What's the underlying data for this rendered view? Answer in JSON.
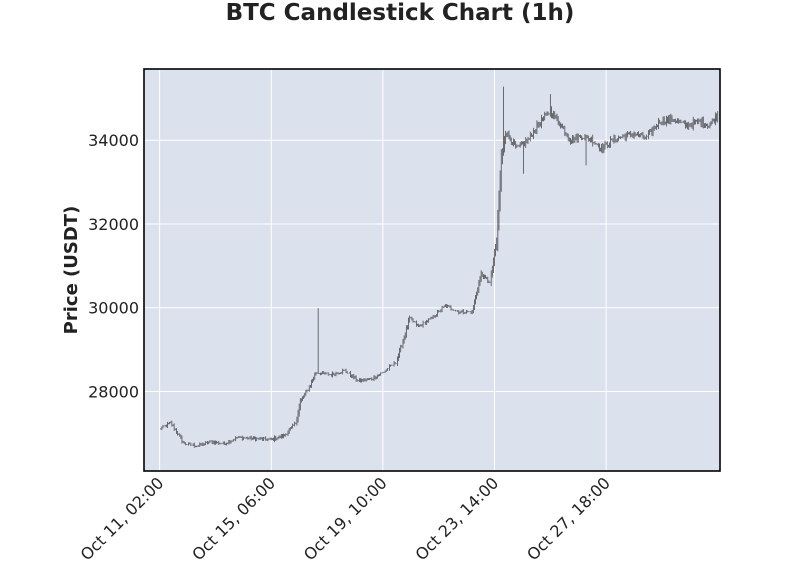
{
  "chart_data": {
    "type": "candlestick",
    "title": "BTC Candlestick Chart (1h)",
    "xlabel": "",
    "ylabel": "Price (USDT)",
    "ylim": [
      26100,
      35700
    ],
    "xlim": [
      "2023-10-10 12:00",
      "2023-11-01 00:00"
    ],
    "grid": true,
    "colors": {
      "plot_background": "#dce1ee",
      "grid": "#ffffff",
      "candle": "#1a1a1a"
    },
    "y_ticks": [
      28000,
      30000,
      32000,
      34000
    ],
    "y_tick_labels": [
      "28000",
      "30000",
      "32000",
      "34000"
    ],
    "x_ticks": [
      "2023-10-11 02:00",
      "2023-10-15 06:00",
      "2023-10-19 10:00",
      "2023-10-23 14:00",
      "2023-10-27 18:00"
    ],
    "x_tick_labels": [
      "Oct 11, 02:00",
      "Oct 15, 06:00",
      "Oct 19, 10:00",
      "Oct 23, 14:00",
      "Oct 27, 18:00"
    ],
    "price_path": {
      "start": "2023-10-11 02:00",
      "interval_hours": 1,
      "anchors": [
        [
          "2023-10-11 02:00",
          27100
        ],
        [
          "2023-10-11 12:00",
          27250
        ],
        [
          "2023-10-12 00:00",
          26750
        ],
        [
          "2023-10-12 12:00",
          26700
        ],
        [
          "2023-10-13 00:00",
          26800
        ],
        [
          "2023-10-13 12:00",
          26750
        ],
        [
          "2023-10-14 00:00",
          26900
        ],
        [
          "2023-10-14 12:00",
          26880
        ],
        [
          "2023-10-15 06:00",
          26850
        ],
        [
          "2023-10-15 18:00",
          26950
        ],
        [
          "2023-10-16 04:00",
          27250
        ],
        [
          "2023-10-16 08:00",
          27750
        ],
        [
          "2023-10-16 16:00",
          28100
        ],
        [
          "2023-10-16 22:00",
          28450
        ],
        [
          "2023-10-17 12:00",
          28400
        ],
        [
          "2023-10-18 00:00",
          28500
        ],
        [
          "2023-10-18 12:00",
          28250
        ],
        [
          "2023-10-19 00:00",
          28300
        ],
        [
          "2023-10-19 10:00",
          28450
        ],
        [
          "2023-10-19 22:00",
          28700
        ],
        [
          "2023-10-20 04:00",
          29200
        ],
        [
          "2023-10-20 10:00",
          29750
        ],
        [
          "2023-10-20 18:00",
          29550
        ],
        [
          "2023-10-21 06:00",
          29750
        ],
        [
          "2023-10-21 18:00",
          30050
        ],
        [
          "2023-10-22 06:00",
          29900
        ],
        [
          "2023-10-22 18:00",
          29900
        ],
        [
          "2023-10-23 02:00",
          30800
        ],
        [
          "2023-10-23 10:00",
          30600
        ],
        [
          "2023-10-23 16:00",
          31600
        ],
        [
          "2023-10-23 20:00",
          33500
        ],
        [
          "2023-10-24 00:00",
          34200
        ],
        [
          "2023-10-24 10:00",
          33800
        ],
        [
          "2023-10-24 20:00",
          34000
        ],
        [
          "2023-10-25 06:00",
          34400
        ],
        [
          "2023-10-25 16:00",
          34700
        ],
        [
          "2023-10-26 02:00",
          34350
        ],
        [
          "2023-10-26 10:00",
          34000
        ],
        [
          "2023-10-26 20:00",
          34100
        ],
        [
          "2023-10-27 06:00",
          34000
        ],
        [
          "2023-10-27 14:00",
          33800
        ],
        [
          "2023-10-28 00:00",
          34000
        ],
        [
          "2023-10-28 10:00",
          34100
        ],
        [
          "2023-10-28 20:00",
          34150
        ],
        [
          "2023-10-29 06:00",
          34050
        ],
        [
          "2023-10-29 18:00",
          34450
        ],
        [
          "2023-10-30 06:00",
          34500
        ],
        [
          "2023-10-30 18:00",
          34350
        ],
        [
          "2023-10-31 06:00",
          34450
        ],
        [
          "2023-10-31 14:00",
          34350
        ],
        [
          "2023-10-31 22:00",
          34600
        ]
      ],
      "notable_wicks": [
        [
          "2023-10-17 00:00",
          29990
        ],
        [
          "2023-10-23 22:00",
          35280
        ],
        [
          "2023-10-24 16:00",
          33200
        ],
        [
          "2023-10-25 16:00",
          35100
        ],
        [
          "2023-10-27 00:00",
          33400
        ]
      ]
    }
  }
}
